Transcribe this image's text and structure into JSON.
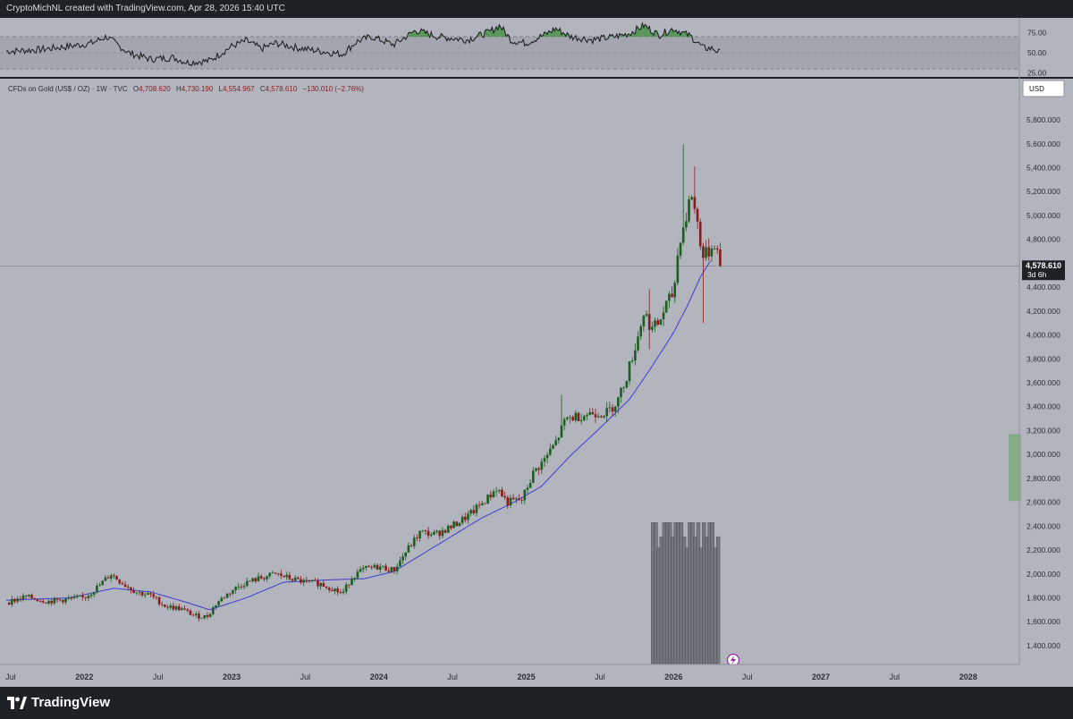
{
  "header": {
    "attribution": "CryptoMichNL created with TradingView.com, Apr 28, 2026 15:40 UTC"
  },
  "legend": {
    "symbol": "CFDs on Gold (US$ / OZ) · 1W · TVC",
    "o_label": "O",
    "o": "4,708.620",
    "h_label": "H",
    "h": "4,730.190",
    "l_label": "L",
    "l": "4,554.967",
    "c_label": "C",
    "c": "4,578.610",
    "change": "−130.010 (−2.76%)"
  },
  "currency_button": "USD",
  "last_price": {
    "value": "4,578.610",
    "countdown": "3d 6h"
  },
  "footer": {
    "brand": "TradingView"
  },
  "colors": {
    "background": "#b2b5be",
    "up": "#1b5e20",
    "down": "#8b1a1a",
    "ma": "#3d3dd1",
    "rsi_line": "#1a1a1a",
    "rsi_band": "#a3a6af",
    "rsi_overbought_fill": "#3f8f3f",
    "volume": "#6f727a",
    "range_box": "#86a98a"
  },
  "chart_data": [
    {
      "type": "line",
      "panel": "oscillator (RSI)",
      "yticks": [
        "75.00",
        "50.00",
        "25.00"
      ],
      "ylim": [
        20,
        90
      ],
      "band": [
        30,
        70
      ],
      "keypoints": [
        [
          2021.5,
          52
        ],
        [
          2021.7,
          54
        ],
        [
          2021.9,
          58
        ],
        [
          2022.05,
          62
        ],
        [
          2022.15,
          70
        ],
        [
          2022.3,
          50
        ],
        [
          2022.45,
          42
        ],
        [
          2022.6,
          44
        ],
        [
          2022.7,
          38
        ],
        [
          2022.85,
          40
        ],
        [
          2023.0,
          58
        ],
        [
          2023.1,
          65
        ],
        [
          2023.2,
          55
        ],
        [
          2023.3,
          62
        ],
        [
          2023.45,
          56
        ],
        [
          2023.6,
          52
        ],
        [
          2023.75,
          48
        ],
        [
          2023.85,
          64
        ],
        [
          2023.95,
          70
        ],
        [
          2024.1,
          60
        ],
        [
          2024.25,
          78
        ],
        [
          2024.4,
          70
        ],
        [
          2024.6,
          66
        ],
        [
          2024.75,
          76
        ],
        [
          2024.82,
          84
        ],
        [
          2024.9,
          65
        ],
        [
          2025.0,
          62
        ],
        [
          2025.12,
          72
        ],
        [
          2025.2,
          80
        ],
        [
          2025.3,
          70
        ],
        [
          2025.45,
          66
        ],
        [
          2025.6,
          70
        ],
        [
          2025.7,
          74
        ],
        [
          2025.8,
          84
        ],
        [
          2025.9,
          72
        ],
        [
          2026.0,
          80
        ],
        [
          2026.12,
          70
        ],
        [
          2026.2,
          56
        ],
        [
          2026.27,
          55
        ],
        [
          2026.33,
          48
        ]
      ]
    },
    {
      "type": "candlestick",
      "title": "CFDs on Gold (US$ / OZ) · 1W · TVC",
      "interval": "1W",
      "xticks": [
        {
          "t": 2021.5,
          "label": "Jul",
          "major": false
        },
        {
          "t": 2022.0,
          "label": "2022",
          "major": true
        },
        {
          "t": 2022.5,
          "label": "Jul",
          "major": false
        },
        {
          "t": 2023.0,
          "label": "2023",
          "major": true
        },
        {
          "t": 2023.5,
          "label": "Jul",
          "major": false
        },
        {
          "t": 2024.0,
          "label": "2024",
          "major": true
        },
        {
          "t": 2024.5,
          "label": "Jul",
          "major": false
        },
        {
          "t": 2025.0,
          "label": "2025",
          "major": true
        },
        {
          "t": 2025.5,
          "label": "Jul",
          "major": false
        },
        {
          "t": 2026.0,
          "label": "2026",
          "major": true
        },
        {
          "t": 2026.5,
          "label": "Jul",
          "major": false
        },
        {
          "t": 2027.0,
          "label": "2027",
          "major": true
        },
        {
          "t": 2027.5,
          "label": "Jul",
          "major": false
        },
        {
          "t": 2028.0,
          "label": "2028",
          "major": true
        }
      ],
      "yticks": [
        "5,800.000",
        "5,600.000",
        "5,400.000",
        "5,200.000",
        "5,000.000",
        "4,800.000",
        "4,600.000",
        "4,400.000",
        "4,200.000",
        "4,000.000",
        "3,800.000",
        "3,600.000",
        "3,400.000",
        "3,200.000",
        "3,000.000",
        "2,800.000",
        "2,600.000",
        "2,400.000",
        "2,200.000",
        "2,000.000",
        "1,800.000",
        "1,600.000",
        "1,400.000"
      ],
      "ylim": [
        1250,
        5950
      ],
      "xlim": [
        2021.47,
        2028.25
      ],
      "last_price": 4578.61,
      "price_keypoints": [
        [
          2021.47,
          1760
        ],
        [
          2021.6,
          1810
        ],
        [
          2021.75,
          1770
        ],
        [
          2021.9,
          1790
        ],
        [
          2022.0,
          1800
        ],
        [
          2022.1,
          1900
        ],
        [
          2022.18,
          2000
        ],
        [
          2022.25,
          1930
        ],
        [
          2022.35,
          1850
        ],
        [
          2022.45,
          1820
        ],
        [
          2022.55,
          1730
        ],
        [
          2022.65,
          1710
        ],
        [
          2022.75,
          1650
        ],
        [
          2022.83,
          1640
        ],
        [
          2022.9,
          1760
        ],
        [
          2023.0,
          1860
        ],
        [
          2023.08,
          1920
        ],
        [
          2023.18,
          1960
        ],
        [
          2023.3,
          2000
        ],
        [
          2023.4,
          1960
        ],
        [
          2023.5,
          1930
        ],
        [
          2023.6,
          1920
        ],
        [
          2023.7,
          1870
        ],
        [
          2023.75,
          1830
        ],
        [
          2023.82,
          1980
        ],
        [
          2023.9,
          2040
        ],
        [
          2024.0,
          2060
        ],
        [
          2024.1,
          2030
        ],
        [
          2024.18,
          2180
        ],
        [
          2024.28,
          2350
        ],
        [
          2024.38,
          2330
        ],
        [
          2024.5,
          2400
        ],
        [
          2024.62,
          2500
        ],
        [
          2024.75,
          2650
        ],
        [
          2024.8,
          2720
        ],
        [
          2024.87,
          2600
        ],
        [
          2024.97,
          2620
        ],
        [
          2025.05,
          2850
        ],
        [
          2025.12,
          2950
        ],
        [
          2025.2,
          3100
        ],
        [
          2025.27,
          3300
        ],
        [
          2025.35,
          3320
        ],
        [
          2025.45,
          3350
        ],
        [
          2025.55,
          3350
        ],
        [
          2025.62,
          3450
        ],
        [
          2025.68,
          3650
        ],
        [
          2025.75,
          3950
        ],
        [
          2025.8,
          4200
        ],
        [
          2025.85,
          4050
        ],
        [
          2025.9,
          4100
        ],
        [
          2025.95,
          4250
        ],
        [
          2026.0,
          4350
        ],
        [
          2026.04,
          4800
        ],
        [
          2026.08,
          4950
        ],
        [
          2026.12,
          5200
        ],
        [
          2026.16,
          4950
        ],
        [
          2026.2,
          4650
        ],
        [
          2026.24,
          4700
        ],
        [
          2026.28,
          4780
        ],
        [
          2026.32,
          4578
        ]
      ],
      "ma_keypoints": [
        [
          2021.47,
          1780
        ],
        [
          2021.9,
          1800
        ],
        [
          2022.2,
          1880
        ],
        [
          2022.45,
          1850
        ],
        [
          2022.7,
          1760
        ],
        [
          2022.85,
          1700
        ],
        [
          2023.1,
          1800
        ],
        [
          2023.35,
          1930
        ],
        [
          2023.65,
          1950
        ],
        [
          2023.9,
          1960
        ],
        [
          2024.1,
          2020
        ],
        [
          2024.3,
          2170
        ],
        [
          2024.5,
          2320
        ],
        [
          2024.7,
          2470
        ],
        [
          2024.9,
          2590
        ],
        [
          2025.1,
          2730
        ],
        [
          2025.3,
          2990
        ],
        [
          2025.5,
          3220
        ],
        [
          2025.7,
          3460
        ],
        [
          2025.85,
          3730
        ],
        [
          2026.0,
          4020
        ],
        [
          2026.1,
          4260
        ],
        [
          2026.18,
          4480
        ],
        [
          2026.25,
          4620
        ]
      ],
      "spike_highs": [
        [
          2026.06,
          5595
        ],
        [
          2026.15,
          5410
        ],
        [
          2025.23,
          3500
        ],
        [
          2025.83,
          4385
        ]
      ],
      "spike_lows": [
        [
          2026.21,
          4100
        ],
        [
          2025.84,
          3880
        ]
      ],
      "volume_profile": {
        "t_start": 2025.86,
        "t_end": 2026.31,
        "top": 2430,
        "bottom": 1250
      },
      "range_box": {
        "low": 2610,
        "high": 3170
      }
    }
  ]
}
